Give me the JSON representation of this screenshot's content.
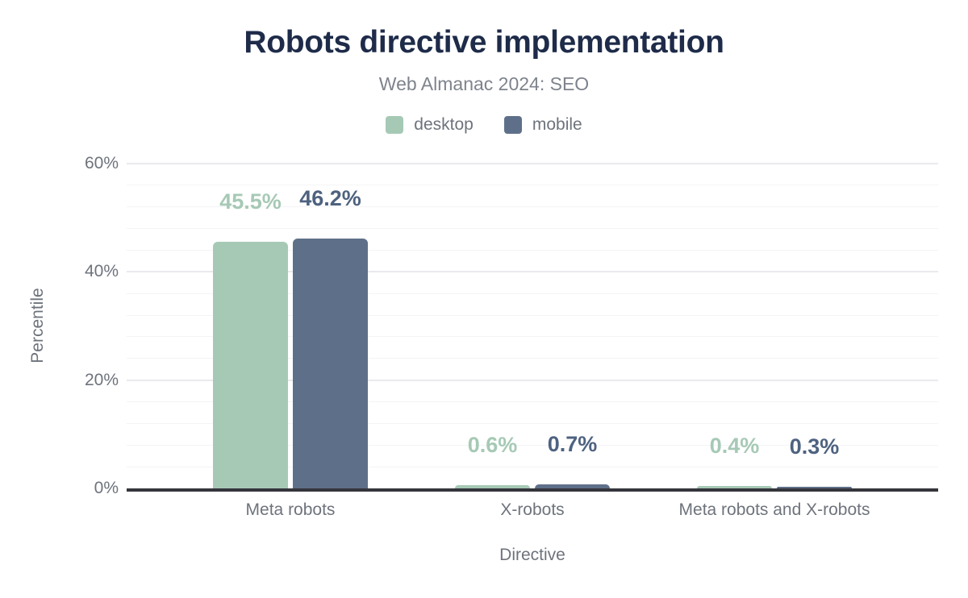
{
  "chart_data": {
    "type": "bar",
    "title": "Robots directive implementation",
    "subtitle": "Web Almanac 2024: SEO",
    "xlabel": "Directive",
    "ylabel": "Percentile",
    "categories": [
      "Meta robots",
      "X-robots",
      "Meta robots and X-robots"
    ],
    "series": [
      {
        "name": "desktop",
        "color": "#a6c9b5",
        "label_color": "#a6c9b5",
        "values": [
          45.5,
          0.6,
          0.4
        ],
        "value_labels": [
          "45.5%",
          "0.6%",
          "0.4%"
        ]
      },
      {
        "name": "mobile",
        "color": "#5e7089",
        "label_color": "#4e6280",
        "values": [
          46.2,
          0.7,
          0.3
        ],
        "value_labels": [
          "46.2%",
          "0.7%",
          "0.3%"
        ]
      }
    ],
    "ylim": [
      0,
      60
    ],
    "yticks": [
      {
        "value": 0,
        "label": "0%"
      },
      {
        "value": 20,
        "label": "20%"
      },
      {
        "value": 40,
        "label": "40%"
      },
      {
        "value": 60,
        "label": "60%"
      }
    ],
    "grid": {
      "minor_step": 4,
      "major_step": 20,
      "minor_color": "#f4f4f7",
      "major_color": "#e9e9ee"
    },
    "legend_position": "top",
    "axis_line_color": "#35353c",
    "text_colors": {
      "title": "#1e2b49",
      "subtitle": "#7e838c",
      "axis": "#6e737c"
    }
  }
}
